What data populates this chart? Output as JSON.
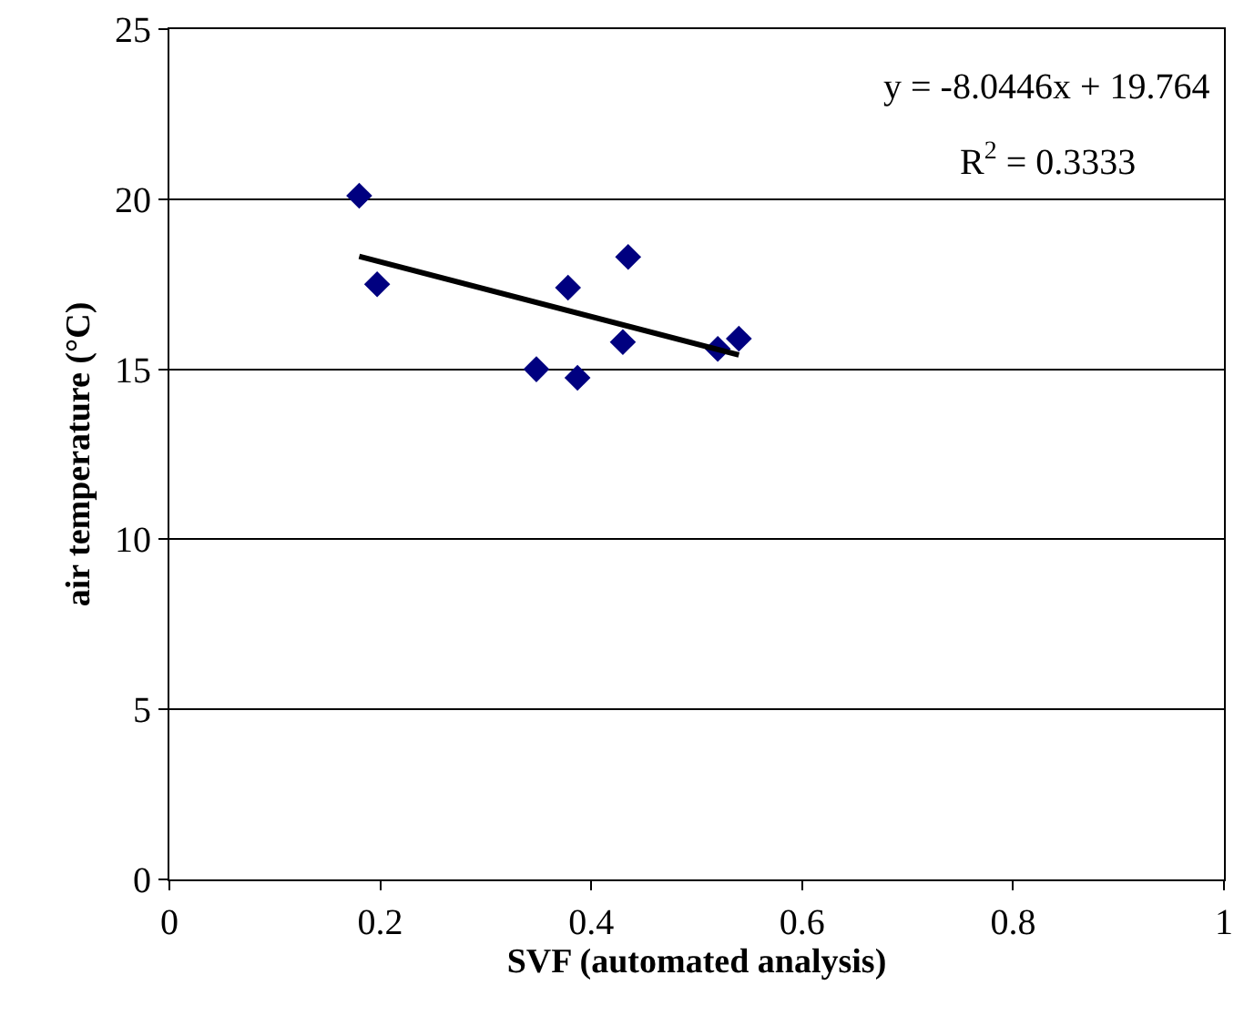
{
  "chart_data": {
    "type": "scatter",
    "xlabel": "SVF (automated analysis)",
    "ylabel": "air temperature (°C)",
    "xlim": [
      0,
      1
    ],
    "xticks": [
      0,
      0.2,
      0.4,
      0.6,
      0.8,
      1
    ],
    "ylim": [
      0,
      25
    ],
    "yticks": [
      0,
      5,
      10,
      15,
      20,
      25
    ],
    "grid": "y",
    "marker": "diamond",
    "annotations": [
      "y = -8.0446x + 19.764",
      "R$^{2}$ = 0.3333"
    ],
    "series": [
      {
        "color": "#000080",
        "x": [
          0.18,
          0.197,
          0.348,
          0.387,
          0.378,
          0.435,
          0.43,
          0.52,
          0.54
        ],
        "values": [
          20.1,
          17.5,
          15.0,
          14.75,
          17.4,
          18.3,
          15.8,
          15.6,
          15.9
        ]
      },
      {
        "type": "line",
        "color": "#000000",
        "x": [
          0.18,
          0.54
        ],
        "values": [
          18.32,
          15.42
        ],
        "line_style": "solid",
        "marker": "none"
      }
    ]
  }
}
